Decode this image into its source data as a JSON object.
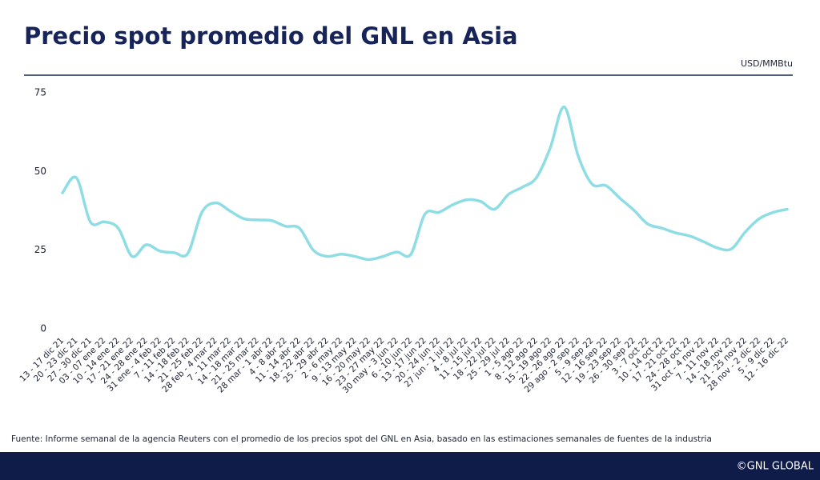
{
  "chart_data": {
    "type": "line",
    "title": "Precio spot promedio del GNL en Asia",
    "y_label": "USD/MMBtu",
    "source": "Fuente: Informe semanal de la agencia Reuters con el promedio de los precios spot del GNL en Asia, basado en las estimaciones semanales de fuentes de la industria",
    "categories": [
      "13 - 17 dic 21",
      "20 - 23 dic 21",
      "27 - 30 dic 21",
      "03 - 07 ene 22",
      "10 - 14 ene 22",
      "17 - 21 ene 22",
      "24 - 28 ene 22",
      "31 ene - 4 feb 22",
      "7 - 11 feb 22",
      "14 - 18 feb 22",
      "21 - 25 feb 22",
      "28 feb - 4 mar 22",
      "7 - 11 mar 22",
      "14 - 18 mar 22",
      "21 - 25 mar 22",
      "28 mar - 1 abr 22",
      "4 - 8 abr 22",
      "11 - 14 abr 22",
      "18 - 22 abr 22",
      "25 - 29 abr 22",
      "2 - 6 may 22",
      "9 - 13 may 22",
      "16 - 20 may 22",
      "23 - 27 may 22",
      "30 may - 3 jun 22",
      "6 - 10 jun 22",
      "13 - 17 jun 22",
      "20 - 24 jun 22",
      "27 jun - 1 jul 22",
      "4 - 8 jul 22",
      "11 - 15 jul 22",
      "18 - 22 jul 22",
      "25 - 29 jul 22",
      "1 - 5 ago 22",
      "8 - 12 ago 22",
      "15 - 19 ago 22",
      "22 - 26 ago 22",
      "29 ago - 2 sep 22",
      "5 - 9 sep 22",
      "12 - 16 sep 22",
      "19 - 23 sep 22",
      "26 - 30 sep 22",
      "3 - 7 oct 22",
      "10 - 14 oct 22",
      "17 - 21 oct 22",
      "24 - 28 oct 22",
      "31 oct - 4 nov 22",
      "7 - 11 nov 22",
      "14 - 18 nov 22",
      "21 - 25 nov 22",
      "28 nov - 2 dic 22",
      "5 - 9 dic 22",
      "12 - 16 dic 22"
    ],
    "series": [
      {
        "name": "Precio spot",
        "color": "#8fdde4",
        "values": [
          43.2,
          48,
          34,
          34,
          32,
          23,
          26.7,
          24.7,
          24.2,
          24,
          37,
          40,
          37.5,
          35,
          34.6,
          34.4,
          32.6,
          32,
          25,
          23,
          23.7,
          23,
          22,
          23,
          24.4,
          23.7,
          36.4,
          37,
          39.4,
          41,
          40.5,
          38,
          42.7,
          45,
          48,
          57.5,
          70.5,
          55,
          46,
          45.5,
          41.5,
          37.7,
          33.3,
          32,
          30.5,
          29.5,
          27.7,
          25.7,
          25.4,
          30.8,
          35,
          37,
          38
        ]
      }
    ],
    "ylim": [
      0,
      75
    ],
    "yticks": [
      0,
      25,
      50,
      75
    ],
    "grid": false
  },
  "footer": "©GNL GLOBAL"
}
